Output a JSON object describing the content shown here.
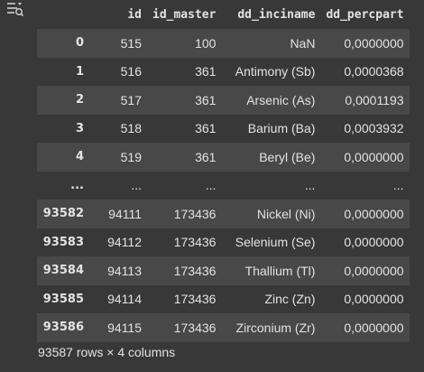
{
  "toolbar": {
    "icon": "table-filter-icon"
  },
  "table": {
    "columns": [
      "",
      "id",
      "id_master",
      "dd_inciname",
      "dd_percpart"
    ],
    "rows": [
      {
        "index": "0",
        "id": "515",
        "id_master": "100",
        "dd_inciname": "NaN",
        "dd_percpart": "0,0000000"
      },
      {
        "index": "1",
        "id": "516",
        "id_master": "361",
        "dd_inciname": "Antimony (Sb)",
        "dd_percpart": "0,0000368"
      },
      {
        "index": "2",
        "id": "517",
        "id_master": "361",
        "dd_inciname": "Arsenic (As)",
        "dd_percpart": "0,0001193"
      },
      {
        "index": "3",
        "id": "518",
        "id_master": "361",
        "dd_inciname": "Barium (Ba)",
        "dd_percpart": "0,0003932"
      },
      {
        "index": "4",
        "id": "519",
        "id_master": "361",
        "dd_inciname": "Beryl (Be)",
        "dd_percpart": "0,0000000"
      },
      {
        "index": "...",
        "id": "...",
        "id_master": "...",
        "dd_inciname": "...",
        "dd_percpart": "..."
      },
      {
        "index": "93582",
        "id": "94111",
        "id_master": "173436",
        "dd_inciname": "Nickel (Ni)",
        "dd_percpart": "0,0000000"
      },
      {
        "index": "93583",
        "id": "94112",
        "id_master": "173436",
        "dd_inciname": "Selenium (Se)",
        "dd_percpart": "0,0000000"
      },
      {
        "index": "93584",
        "id": "94113",
        "id_master": "173436",
        "dd_inciname": "Thallium (Tl)",
        "dd_percpart": "0,0000000"
      },
      {
        "index": "93585",
        "id": "94114",
        "id_master": "173436",
        "dd_inciname": "Zinc (Zn)",
        "dd_percpart": "0,0000000"
      },
      {
        "index": "93586",
        "id": "94115",
        "id_master": "173436",
        "dd_inciname": "Zirconium (Zr)",
        "dd_percpart": "0,0000000"
      }
    ]
  },
  "footer": {
    "shape_text": "93587 rows × 4 columns"
  }
}
